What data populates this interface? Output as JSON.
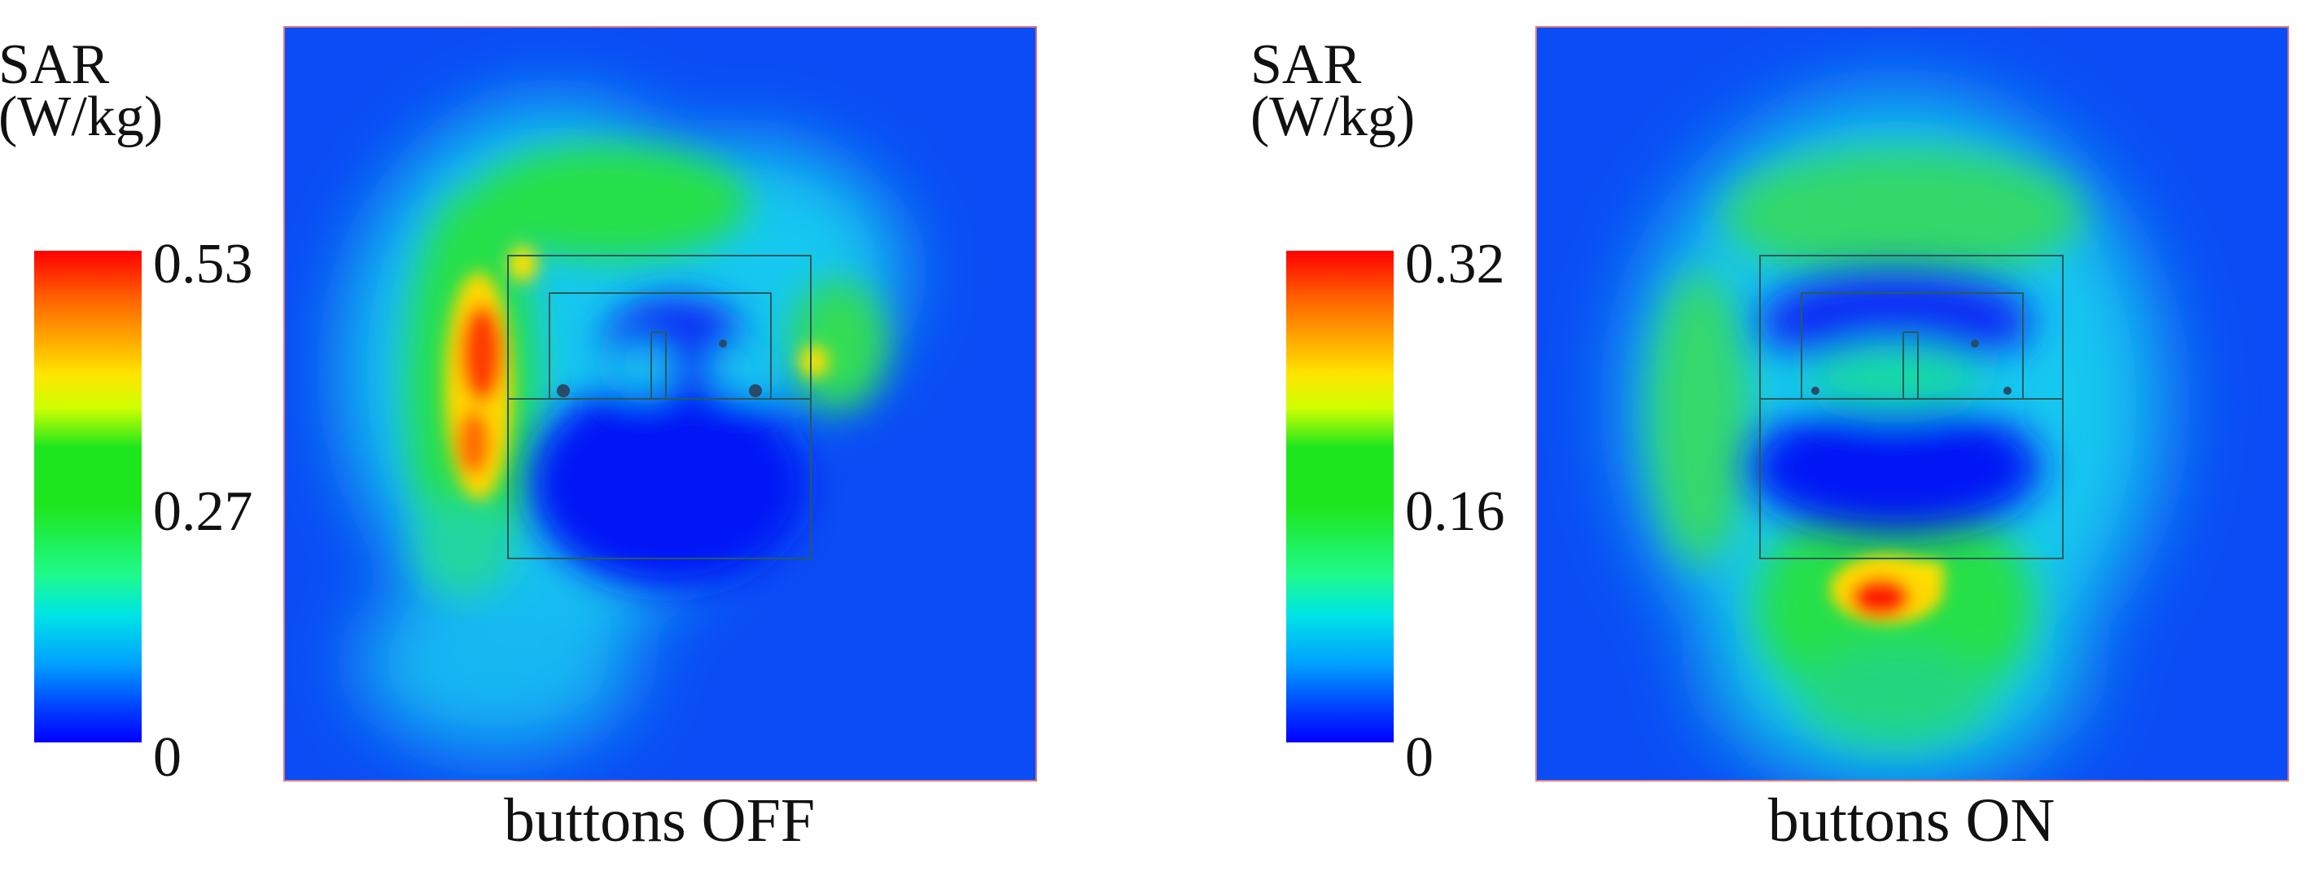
{
  "chart_data": [
    {
      "type": "heatmap",
      "title": "buttons OFF",
      "colorbar": {
        "label_line1": "SAR",
        "label_line2": "(W/kg)",
        "ticks": [
          "0.53",
          "0.27",
          "0"
        ],
        "range": [
          0,
          0.53
        ]
      },
      "colors": [
        "#0000ff",
        "#00a0ff",
        "#00e5e6",
        "#1ee61e",
        "#ffe400",
        "#ff0000"
      ]
    },
    {
      "type": "heatmap",
      "title": "buttons ON",
      "colorbar": {
        "label_line1": "SAR",
        "label_line2": "(W/kg)",
        "ticks": [
          "0.32",
          "0.16",
          "0"
        ],
        "range": [
          0,
          0.32
        ]
      },
      "colors": [
        "#0000ff",
        "#00a0ff",
        "#00e5e6",
        "#1ee61e",
        "#ffe400",
        "#ff0000"
      ]
    }
  ]
}
